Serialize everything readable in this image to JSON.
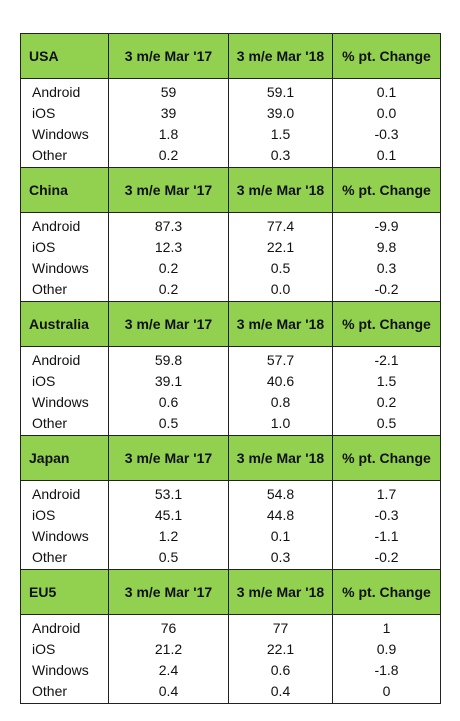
{
  "columns": [
    "3 m/e Mar '17",
    "3 m/e Mar '18",
    "% pt. Change"
  ],
  "sections": [
    {
      "region": "USA",
      "rows": [
        {
          "os": "Android",
          "mar17": "59",
          "mar18": "59.1",
          "change": "0.1"
        },
        {
          "os": "iOS",
          "mar17": "39",
          "mar18": "39.0",
          "change": "0.0"
        },
        {
          "os": "Windows",
          "mar17": "1.8",
          "mar18": "1.5",
          "change": "-0.3"
        },
        {
          "os": "Other",
          "mar17": "0.2",
          "mar18": "0.3",
          "change": "0.1"
        }
      ]
    },
    {
      "region": "China",
      "rows": [
        {
          "os": "Android",
          "mar17": "87.3",
          "mar18": "77.4",
          "change": "-9.9"
        },
        {
          "os": "iOS",
          "mar17": "12.3",
          "mar18": "22.1",
          "change": "9.8"
        },
        {
          "os": "Windows",
          "mar17": "0.2",
          "mar18": "0.5",
          "change": "0.3"
        },
        {
          "os": "Other",
          "mar17": "0.2",
          "mar18": "0.0",
          "change": "-0.2"
        }
      ]
    },
    {
      "region": "Australia",
      "rows": [
        {
          "os": "Android",
          "mar17": "59.8",
          "mar18": "57.7",
          "change": "-2.1"
        },
        {
          "os": "iOS",
          "mar17": "39.1",
          "mar18": "40.6",
          "change": "1.5"
        },
        {
          "os": "Windows",
          "mar17": "0.6",
          "mar18": "0.8",
          "change": "0.2"
        },
        {
          "os": "Other",
          "mar17": "0.5",
          "mar18": "1.0",
          "change": "0.5"
        }
      ]
    },
    {
      "region": "Japan",
      "rows": [
        {
          "os": "Android",
          "mar17": "53.1",
          "mar18": "54.8",
          "change": "1.7"
        },
        {
          "os": "iOS",
          "mar17": "45.1",
          "mar18": "44.8",
          "change": "-0.3"
        },
        {
          "os": "Windows",
          "mar17": "1.2",
          "mar18": "0.1",
          "change": "-1.1"
        },
        {
          "os": "Other",
          "mar17": "0.5",
          "mar18": "0.3",
          "change": "-0.2"
        }
      ]
    },
    {
      "region": "EU5",
      "rows": [
        {
          "os": "Android",
          "mar17": "76",
          "mar18": "77",
          "change": "1"
        },
        {
          "os": "iOS",
          "mar17": "21.2",
          "mar18": "22.1",
          "change": "0.9"
        },
        {
          "os": "Windows",
          "mar17": "2.4",
          "mar18": "0.6",
          "change": "-1.8"
        },
        {
          "os": "Other",
          "mar17": "0.4",
          "mar18": "0.4",
          "change": "0"
        }
      ]
    }
  ],
  "colors": {
    "header_bg": "#92d050",
    "border": "#222222",
    "text": "#111111"
  }
}
